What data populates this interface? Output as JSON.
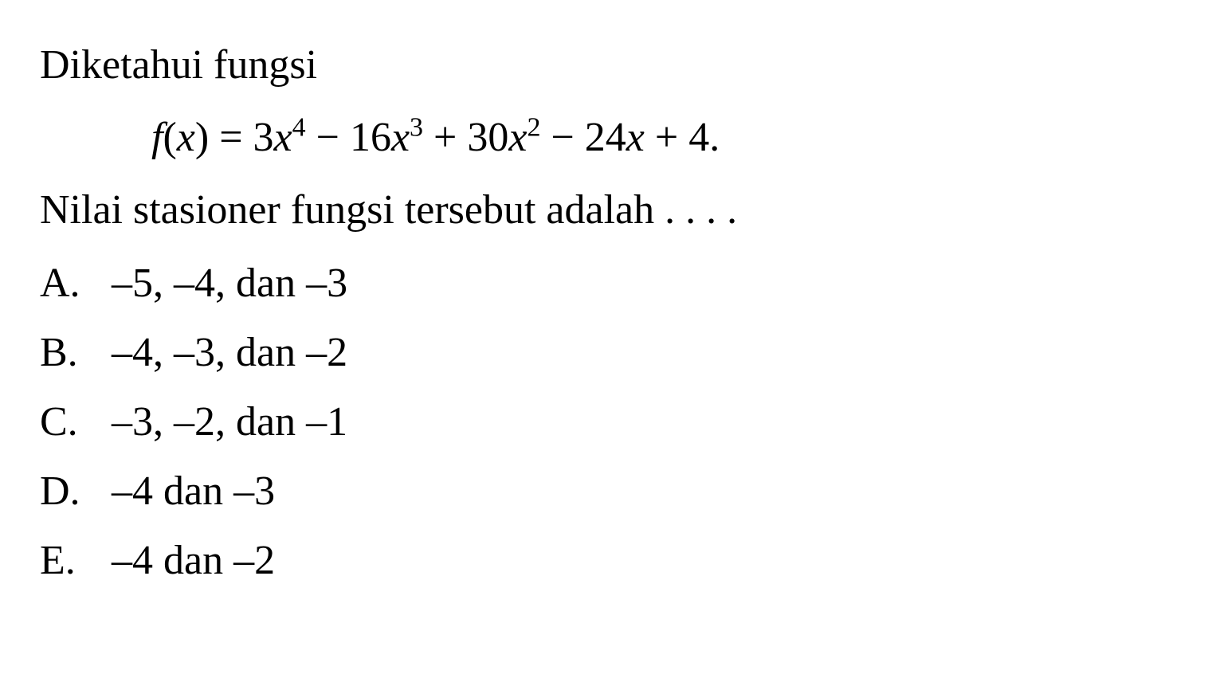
{
  "intro": "Diketahui fungsi",
  "formula": {
    "fn": "f",
    "var": "x",
    "eq": "=",
    "term1_coef": "3",
    "term1_var": "x",
    "term1_exp": "4",
    "op1": "−",
    "term2_coef": "16",
    "term2_var": "x",
    "term2_exp": "3",
    "op2": "+",
    "term3_coef": "30",
    "term3_var": "x",
    "term3_exp": "2",
    "op3": "−",
    "term4_coef": "24",
    "term4_var": "x",
    "op4": "+",
    "term5": "4.",
    "open_paren": "(",
    "close_paren": ")"
  },
  "question": "Nilai stasioner fungsi tersebut adalah . . . .",
  "options": [
    {
      "letter": "A.",
      "text": "–5, –4, dan –3"
    },
    {
      "letter": "B.",
      "text": "–4, –3, dan –2"
    },
    {
      "letter": "C.",
      "text": "–3, –2, dan –1"
    },
    {
      "letter": "D.",
      "text": "–4 dan –3"
    },
    {
      "letter": "E.",
      "text": "–4 dan –2"
    }
  ],
  "colors": {
    "background": "#ffffff",
    "text": "#000000"
  },
  "typography": {
    "font_family": "Times New Roman",
    "base_fontsize": 52,
    "superscript_fontsize": 34
  }
}
